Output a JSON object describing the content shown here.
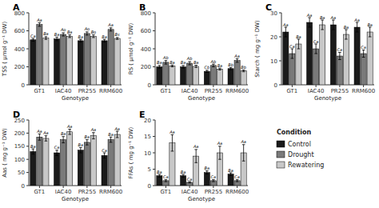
{
  "chart_data": [
    {
      "type": "bar",
      "title": "A",
      "xlabel": "Genotype",
      "ylabel": "TSS ( μmol g⁻¹ DW)",
      "categories": [
        "GT1",
        "IAC40",
        "PR255",
        "RRM600"
      ],
      "ylim": [
        0,
        800
      ],
      "yticks": [
        0,
        200,
        400,
        600,
        800
      ],
      "legend": "lower right",
      "legend_title": "Condition",
      "series": [
        {
          "name": "Control",
          "color": "#1a1a1a",
          "values": [
            500,
            510,
            490,
            490
          ],
          "errors": [
            15,
            20,
            15,
            15
          ],
          "annotations": [
            "Ca",
            "Ba",
            "Ba",
            "Ba"
          ]
        },
        {
          "name": "Drought",
          "color": "#7a7a7a",
          "values": [
            670,
            560,
            570,
            615
          ],
          "errors": [
            20,
            18,
            18,
            18
          ],
          "annotations": [
            "Aa",
            "Ao",
            "Ao",
            "Aa"
          ]
        },
        {
          "name": "Rewatering",
          "color": "#c8c8c8",
          "values": [
            520,
            540,
            540,
            515
          ],
          "errors": [
            15,
            15,
            15,
            10
          ],
          "annotations": [
            "Ba",
            "Ba",
            "Bo",
            "Bs"
          ]
        }
      ]
    },
    {
      "type": "bar",
      "title": "B",
      "xlabel": "Genotype",
      "ylabel": "RS ( μmol g⁻¹ DW)",
      "categories": [
        "GT1",
        "IAC40",
        "PR255",
        "RRM600"
      ],
      "ylim": [
        0,
        800
      ],
      "yticks": [
        0,
        200,
        400,
        600,
        800
      ],
      "series": [
        {
          "name": "Control",
          "color": "#1a1a1a",
          "values": [
            200,
            200,
            150,
            180
          ],
          "errors": [
            15,
            15,
            12,
            12
          ],
          "annotations": [
            "Ba",
            "Ba",
            "Cb",
            "Bb"
          ]
        },
        {
          "name": "Drought",
          "color": "#7a7a7a",
          "values": [
            250,
            240,
            215,
            270
          ],
          "errors": [
            20,
            18,
            15,
            20
          ],
          "annotations": [
            "Ab",
            "Ab",
            "Ab",
            "Aa"
          ]
        },
        {
          "name": "Rewatering",
          "color": "#c8c8c8",
          "values": [
            210,
            205,
            175,
            155
          ],
          "errors": [
            10,
            12,
            10,
            10
          ],
          "annotations": [
            "Ba",
            "Ba",
            "Ba",
            "Bb"
          ]
        }
      ]
    },
    {
      "type": "bar",
      "title": "C",
      "xlabel": "Genotype",
      "ylabel": "Starch ( mg g⁻¹ DW)",
      "categories": [
        "GT1",
        "IAC40",
        "PR255",
        "RRM600"
      ],
      "ylim": [
        0,
        30
      ],
      "yticks": [
        0,
        10,
        20,
        30
      ],
      "series": [
        {
          "name": "Control",
          "color": "#1a1a1a",
          "values": [
            22,
            26,
            25,
            24
          ],
          "errors": [
            2,
            2,
            2,
            2
          ],
          "annotations": [
            "Aa",
            "Aa",
            "Aa",
            "Aa"
          ]
        },
        {
          "name": "Drought",
          "color": "#7a7a7a",
          "values": [
            13,
            15,
            12,
            13
          ],
          "errors": [
            2,
            2,
            1.5,
            1.5
          ],
          "annotations": [
            "Ca",
            "Ca",
            "Ca",
            "Ca"
          ]
        },
        {
          "name": "Rewatering",
          "color": "#c8c8c8",
          "values": [
            17,
            25,
            21,
            22
          ],
          "errors": [
            2,
            2,
            2,
            2
          ],
          "annotations": [
            "Ba",
            "Ba",
            "Ba",
            "Ba"
          ]
        }
      ]
    },
    {
      "type": "bar",
      "title": "D",
      "xlabel": "Genotype",
      "ylabel": "Aas ( mg g⁻¹ DW)",
      "categories": [
        "GT1",
        "IAC40",
        "PR255",
        "RRM600"
      ],
      "ylim": [
        0,
        250
      ],
      "yticks": [
        0,
        50,
        100,
        150,
        200,
        250
      ],
      "series": [
        {
          "name": "Control",
          "color": "#1a1a1a",
          "values": [
            130,
            125,
            135,
            115
          ],
          "errors": [
            10,
            10,
            10,
            10
          ],
          "annotations": [
            "Ba",
            "Ca",
            "Ba",
            "Ca"
          ]
        },
        {
          "name": "Drought",
          "color": "#7a7a7a",
          "values": [
            185,
            175,
            165,
            175
          ],
          "errors": [
            12,
            12,
            10,
            10
          ],
          "annotations": [
            "Aa",
            "Ba",
            "Ba",
            "Ba"
          ]
        },
        {
          "name": "Rewatering",
          "color": "#c8c8c8",
          "values": [
            180,
            205,
            190,
            195
          ],
          "errors": [
            10,
            10,
            12,
            12
          ],
          "annotations": [
            "Aa",
            "Aa",
            "Aa",
            "Aa"
          ]
        }
      ]
    },
    {
      "type": "bar",
      "title": "E",
      "xlabel": "Genotype",
      "ylabel": "FFAs ( mg g⁻¹ DW)",
      "categories": [
        "GT1",
        "IAC40",
        "PR255",
        "RRM600"
      ],
      "ylim": [
        0,
        20
      ],
      "yticks": [
        0,
        5,
        10,
        15,
        20
      ],
      "series": [
        {
          "name": "Control",
          "color": "#1a1a1a",
          "values": [
            3.0,
            3.0,
            4.0,
            3.5
          ],
          "errors": [
            0.4,
            0.4,
            0.5,
            0.4
          ],
          "annotations": [
            "Ba",
            "Ba",
            "Ba",
            "Ba"
          ]
        },
        {
          "name": "Drought",
          "color": "#7a7a7a",
          "values": [
            1.5,
            1.0,
            1.5,
            1.5
          ],
          "errors": [
            0.3,
            0.2,
            0.3,
            0.3
          ],
          "annotations": [
            "Ca",
            "Ca",
            "Ca",
            "Ca"
          ]
        },
        {
          "name": "Rewatering",
          "color": "#c8c8c8",
          "values": [
            13,
            9,
            10,
            10
          ],
          "errors": [
            2.5,
            2.0,
            2.0,
            2.5
          ],
          "annotations": [
            "Aa",
            "Aa",
            "Aa",
            "Aa"
          ]
        }
      ]
    }
  ]
}
